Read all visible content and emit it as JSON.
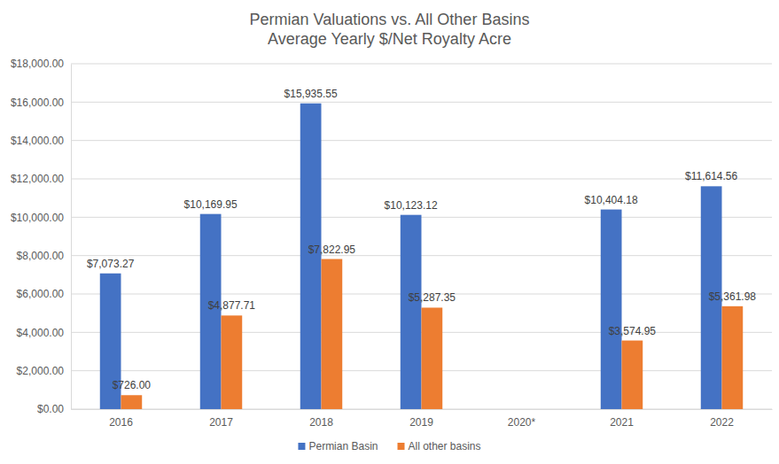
{
  "chart_data": {
    "type": "bar",
    "title": "Permian Valuations vs. All Other Basins",
    "subtitle": "Average Yearly $/Net Royalty Acre",
    "categories": [
      "2016",
      "2017",
      "2018",
      "2019",
      "2020*",
      "2021",
      "2022"
    ],
    "series": [
      {
        "name": "Permian Basin",
        "color": "#4472c4",
        "values": [
          7073.27,
          10169.95,
          15935.55,
          10123.12,
          null,
          10404.18,
          11614.56
        ],
        "value_labels": [
          "$7,073.27",
          "$10,169.95",
          "$15,935.55",
          "$10,123.12",
          null,
          "$10,404.18",
          "$11,614.56"
        ]
      },
      {
        "name": "All other basins",
        "color": "#ed7d31",
        "values": [
          726.0,
          4877.71,
          7822.95,
          5287.35,
          null,
          3574.95,
          5361.98
        ],
        "value_labels": [
          "$726.00",
          "$4,877.71",
          "$7,822.95",
          "$5,287.35",
          null,
          "$3,574.95",
          "$5,361.98"
        ]
      }
    ],
    "ylim": [
      0,
      18000
    ],
    "yticks": [
      {
        "value": 0,
        "label": "$0.00"
      },
      {
        "value": 2000,
        "label": "$2,000.00"
      },
      {
        "value": 4000,
        "label": "$4,000.00"
      },
      {
        "value": 6000,
        "label": "$6,000.00"
      },
      {
        "value": 8000,
        "label": "$8,000.00"
      },
      {
        "value": 10000,
        "label": "$10,000.00"
      },
      {
        "value": 12000,
        "label": "$12,000.00"
      },
      {
        "value": 14000,
        "label": "$14,000.00"
      },
      {
        "value": 16000,
        "label": "$16,000.00"
      },
      {
        "value": 18000,
        "label": "$18,000.00"
      }
    ],
    "grid": true,
    "legend": "bottom",
    "data_labels": true
  }
}
